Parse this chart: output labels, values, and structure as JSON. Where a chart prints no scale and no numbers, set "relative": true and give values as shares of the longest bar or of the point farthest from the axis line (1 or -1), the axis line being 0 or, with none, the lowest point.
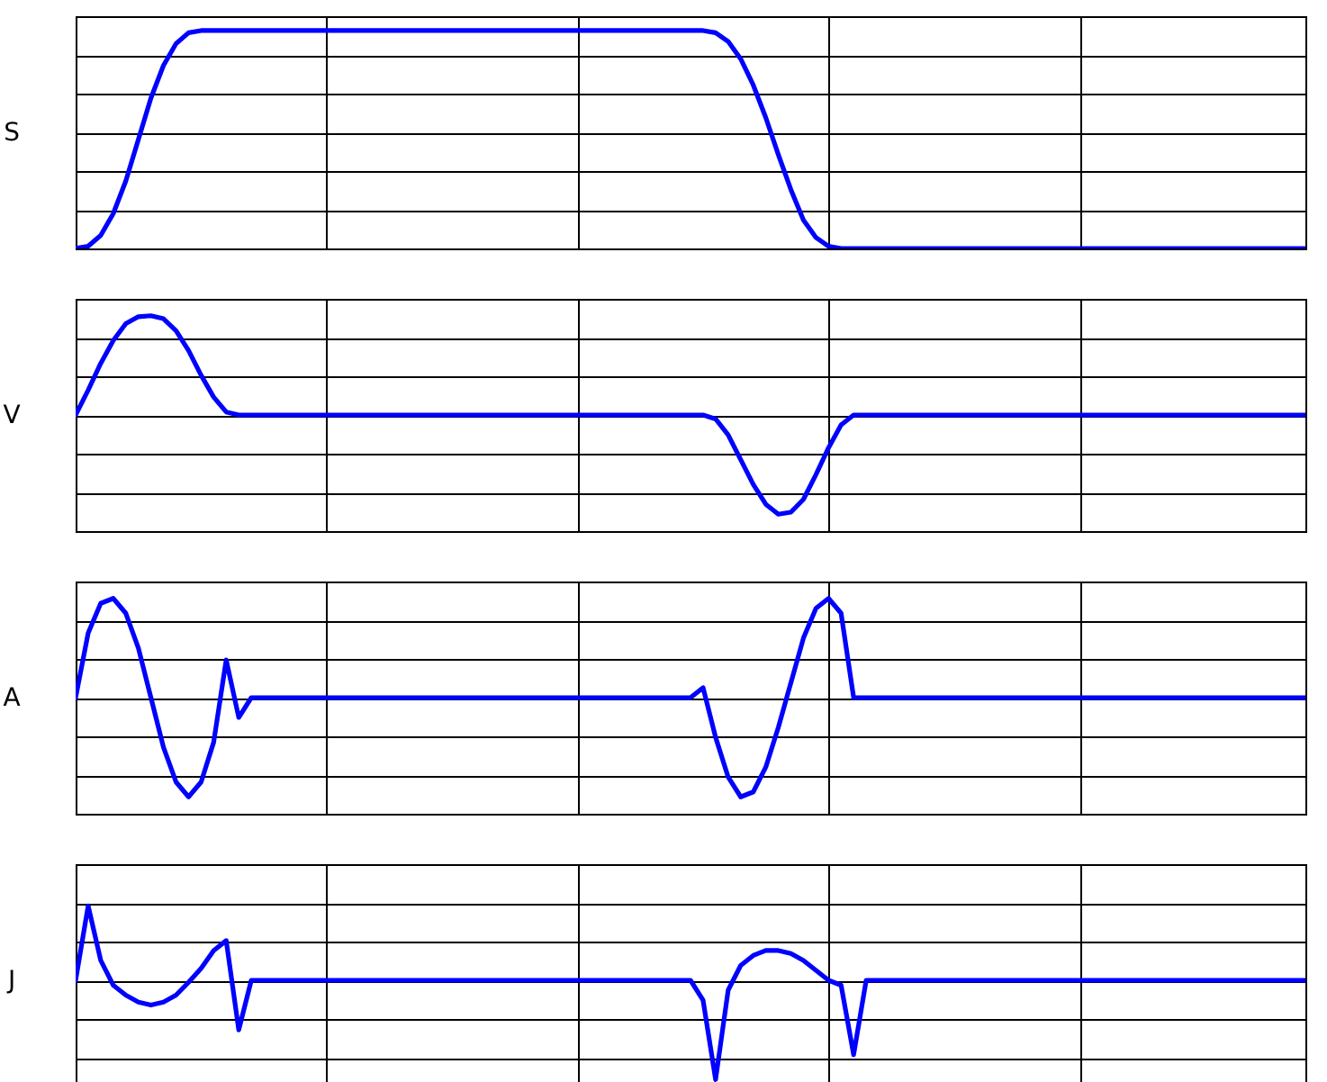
{
  "chart_data": [
    {
      "type": "line",
      "ylabel": "S",
      "relative": true,
      "grid": true,
      "categories": [
        null,
        null,
        null,
        null,
        null,
        null,
        null,
        null,
        null,
        null,
        null,
        null,
        null,
        null,
        null,
        null,
        null,
        null,
        null,
        null,
        null,
        null,
        null,
        null,
        null,
        null,
        null,
        null,
        null,
        null,
        null,
        null,
        null,
        null,
        null,
        null,
        null,
        null,
        null,
        null,
        null,
        null,
        null,
        null,
        null,
        null,
        null,
        null,
        null,
        null,
        null,
        null,
        null,
        null,
        null,
        null,
        null,
        null,
        null,
        null,
        null,
        null,
        null,
        null,
        null,
        null,
        null,
        null,
        null,
        null,
        null,
        null,
        null,
        null,
        null,
        null,
        null,
        null,
        null,
        null,
        null,
        null,
        null,
        null,
        null,
        null,
        null,
        null,
        null,
        null,
        null,
        null,
        null,
        null,
        null,
        null,
        null,
        null,
        null
      ],
      "series": [
        {
          "color": "#0000ff",
          "values": [
            0,
            0.01,
            0.06,
            0.16,
            0.31,
            0.5,
            0.69,
            0.84,
            0.94,
            0.99,
            1,
            1,
            1,
            1,
            1,
            1,
            1,
            1,
            1,
            1,
            1,
            1,
            1,
            1,
            1,
            1,
            1,
            1,
            1,
            1,
            1,
            1,
            1,
            1,
            1,
            1,
            1,
            1,
            1,
            1,
            1,
            1,
            1,
            1,
            1,
            1,
            1,
            1,
            1,
            1,
            1,
            0.99,
            0.95,
            0.87,
            0.75,
            0.6,
            0.43,
            0.27,
            0.13,
            0.05,
            0.01,
            0,
            0,
            0,
            0,
            0,
            0,
            0,
            0,
            0,
            0,
            0,
            0,
            0,
            0,
            0,
            0,
            0,
            0,
            0,
            0,
            0,
            0,
            0,
            0,
            0,
            0,
            0,
            0,
            0,
            0,
            0,
            0,
            0,
            0,
            0,
            0,
            0,
            0
          ]
        }
      ]
    },
    {
      "type": "line",
      "ylabel": "V",
      "relative": true,
      "grid": true,
      "categories": [
        null,
        null,
        null,
        null,
        null,
        null,
        null,
        null,
        null,
        null,
        null,
        null,
        null,
        null,
        null,
        null,
        null,
        null,
        null,
        null,
        null,
        null,
        null,
        null,
        null,
        null,
        null,
        null,
        null,
        null,
        null,
        null,
        null,
        null,
        null,
        null,
        null,
        null,
        null,
        null,
        null,
        null,
        null,
        null,
        null,
        null,
        null,
        null,
        null,
        null,
        null,
        null,
        null,
        null,
        null,
        null,
        null,
        null,
        null,
        null,
        null,
        null,
        null,
        null,
        null,
        null,
        null,
        null,
        null,
        null,
        null,
        null,
        null,
        null,
        null,
        null,
        null,
        null,
        null,
        null,
        null,
        null,
        null,
        null,
        null,
        null,
        null,
        null,
        null,
        null,
        null,
        null,
        null,
        null,
        null,
        null,
        null,
        null,
        null
      ],
      "series": [
        {
          "color": "#0000ff",
          "values": [
            0,
            0.25,
            0.52,
            0.75,
            0.92,
            0.99,
            1,
            0.97,
            0.85,
            0.65,
            0.4,
            0.18,
            0.03,
            0,
            0,
            0,
            0,
            0,
            0,
            0,
            0,
            0,
            0,
            0,
            0,
            0,
            0,
            0,
            0,
            0,
            0,
            0,
            0,
            0,
            0,
            0,
            0,
            0,
            0,
            0,
            0,
            0,
            0,
            0,
            0,
            0,
            0,
            0,
            0,
            0,
            0,
            -0.04,
            -0.2,
            -0.45,
            -0.7,
            -0.9,
            -1,
            -0.98,
            -0.85,
            -0.6,
            -0.33,
            -0.1,
            0,
            0,
            0,
            0,
            0,
            0,
            0,
            0,
            0,
            0,
            0,
            0,
            0,
            0,
            0,
            0,
            0,
            0,
            0,
            0,
            0,
            0,
            0,
            0,
            0,
            0,
            0,
            0,
            0,
            0,
            0,
            0,
            0,
            0,
            0,
            0,
            0
          ]
        }
      ]
    },
    {
      "type": "line",
      "ylabel": "A",
      "relative": true,
      "grid": true,
      "categories": [
        null,
        null,
        null,
        null,
        null,
        null,
        null,
        null,
        null,
        null,
        null,
        null,
        null,
        null,
        null,
        null,
        null,
        null,
        null,
        null,
        null,
        null,
        null,
        null,
        null,
        null,
        null,
        null,
        null,
        null,
        null,
        null,
        null,
        null,
        null,
        null,
        null,
        null,
        null,
        null,
        null,
        null,
        null,
        null,
        null,
        null,
        null,
        null,
        null,
        null,
        null,
        null,
        null,
        null,
        null,
        null,
        null,
        null,
        null,
        null,
        null,
        null,
        null,
        null,
        null,
        null,
        null,
        null,
        null,
        null,
        null,
        null,
        null,
        null,
        null,
        null,
        null,
        null,
        null,
        null,
        null,
        null,
        null,
        null,
        null,
        null,
        null,
        null,
        null,
        null,
        null,
        null,
        null,
        null,
        null,
        null,
        null,
        null,
        null
      ],
      "series": [
        {
          "color": "#0000ff",
          "values": [
            0,
            0.65,
            0.95,
            1,
            0.85,
            0.5,
            0,
            -0.5,
            -0.85,
            -1,
            -0.85,
            -0.45,
            0.38,
            -0.2,
            0,
            0,
            0,
            0,
            0,
            0,
            0,
            0,
            0,
            0,
            0,
            0,
            0,
            0,
            0,
            0,
            0,
            0,
            0,
            0,
            0,
            0,
            0,
            0,
            0,
            0,
            0,
            0,
            0,
            0,
            0,
            0,
            0,
            0,
            0,
            0,
            0.1,
            -0.4,
            -0.8,
            -1,
            -0.95,
            -0.7,
            -0.3,
            0.15,
            0.6,
            0.9,
            1,
            0.85,
            0,
            0,
            0,
            0,
            0,
            0,
            0,
            0,
            0,
            0,
            0,
            0,
            0,
            0,
            0,
            0,
            0,
            0,
            0,
            0,
            0,
            0,
            0,
            0,
            0,
            0,
            0,
            0,
            0,
            0,
            0,
            0,
            0,
            0,
            0,
            0,
            0
          ]
        }
      ]
    },
    {
      "type": "line",
      "ylabel": "J",
      "relative": true,
      "grid": true,
      "categories": [
        null,
        null,
        null,
        null,
        null,
        null,
        null,
        null,
        null,
        null,
        null,
        null,
        null,
        null,
        null,
        null,
        null,
        null,
        null,
        null,
        null,
        null,
        null,
        null,
        null,
        null,
        null,
        null,
        null,
        null,
        null,
        null,
        null,
        null,
        null,
        null,
        null,
        null,
        null,
        null,
        null,
        null,
        null,
        null,
        null,
        null,
        null,
        null,
        null,
        null,
        null,
        null,
        null,
        null,
        null,
        null,
        null,
        null,
        null,
        null,
        null,
        null,
        null,
        null,
        null,
        null,
        null,
        null,
        null,
        null,
        null,
        null,
        null,
        null,
        null,
        null,
        null,
        null,
        null,
        null,
        null,
        null,
        null,
        null,
        null,
        null,
        null,
        null,
        null,
        null,
        null,
        null,
        null,
        null,
        null,
        null,
        null,
        null,
        null
      ],
      "series": [
        {
          "color": "#0000ff",
          "values": [
            0,
            0.75,
            0.2,
            -0.05,
            -0.15,
            -0.22,
            -0.25,
            -0.22,
            -0.15,
            -0.02,
            0.12,
            0.3,
            0.4,
            -0.5,
            0,
            0,
            0,
            0,
            0,
            0,
            0,
            0,
            0,
            0,
            0,
            0,
            0,
            0,
            0,
            0,
            0,
            0,
            0,
            0,
            0,
            0,
            0,
            0,
            0,
            0,
            0,
            0,
            0,
            0,
            0,
            0,
            0,
            0,
            0,
            0,
            -0.2,
            -1,
            -0.1,
            0.15,
            0.25,
            0.3,
            0.3,
            0.27,
            0.2,
            0.1,
            0,
            -0.05,
            -0.75,
            0,
            0,
            0,
            0,
            0,
            0,
            0,
            0,
            0,
            0,
            0,
            0,
            0,
            0,
            0,
            0,
            0,
            0,
            0,
            0,
            0,
            0,
            0,
            0,
            0,
            0,
            0,
            0,
            0,
            0,
            0,
            0,
            0,
            0,
            0,
            0
          ]
        }
      ]
    }
  ]
}
